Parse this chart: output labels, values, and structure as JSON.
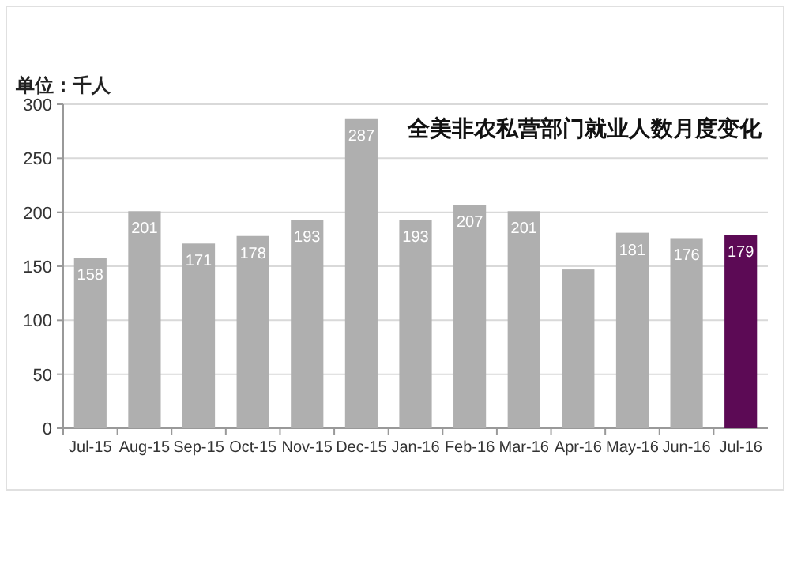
{
  "chart_data": {
    "type": "bar",
    "title": "全美非农私营部门就业人数月度变化",
    "ylabel": "单位：千人",
    "categories": [
      "Jul-15",
      "Aug-15",
      "Sep-15",
      "Oct-15",
      "Nov-15",
      "Dec-15",
      "Jan-16",
      "Feb-16",
      "Mar-16",
      "Apr-16",
      "May-16",
      "Jun-16",
      "Jul-16"
    ],
    "values": [
      158,
      201,
      171,
      178,
      193,
      287,
      193,
      207,
      201,
      147,
      181,
      176,
      179
    ],
    "value_labels": [
      "158",
      "201",
      "171",
      "178",
      "193",
      "287",
      "193",
      "207",
      "201",
      null,
      "181",
      "176",
      "179"
    ],
    "colors": [
      "#afafaf",
      "#afafaf",
      "#afafaf",
      "#afafaf",
      "#afafaf",
      "#afafaf",
      "#afafaf",
      "#afafaf",
      "#afafaf",
      "#afafaf",
      "#afafaf",
      "#afafaf",
      "#5c0a55"
    ],
    "ylim": [
      0,
      300
    ],
    "yticks": [
      0,
      50,
      100,
      150,
      200,
      250,
      300
    ],
    "grid": "y"
  }
}
